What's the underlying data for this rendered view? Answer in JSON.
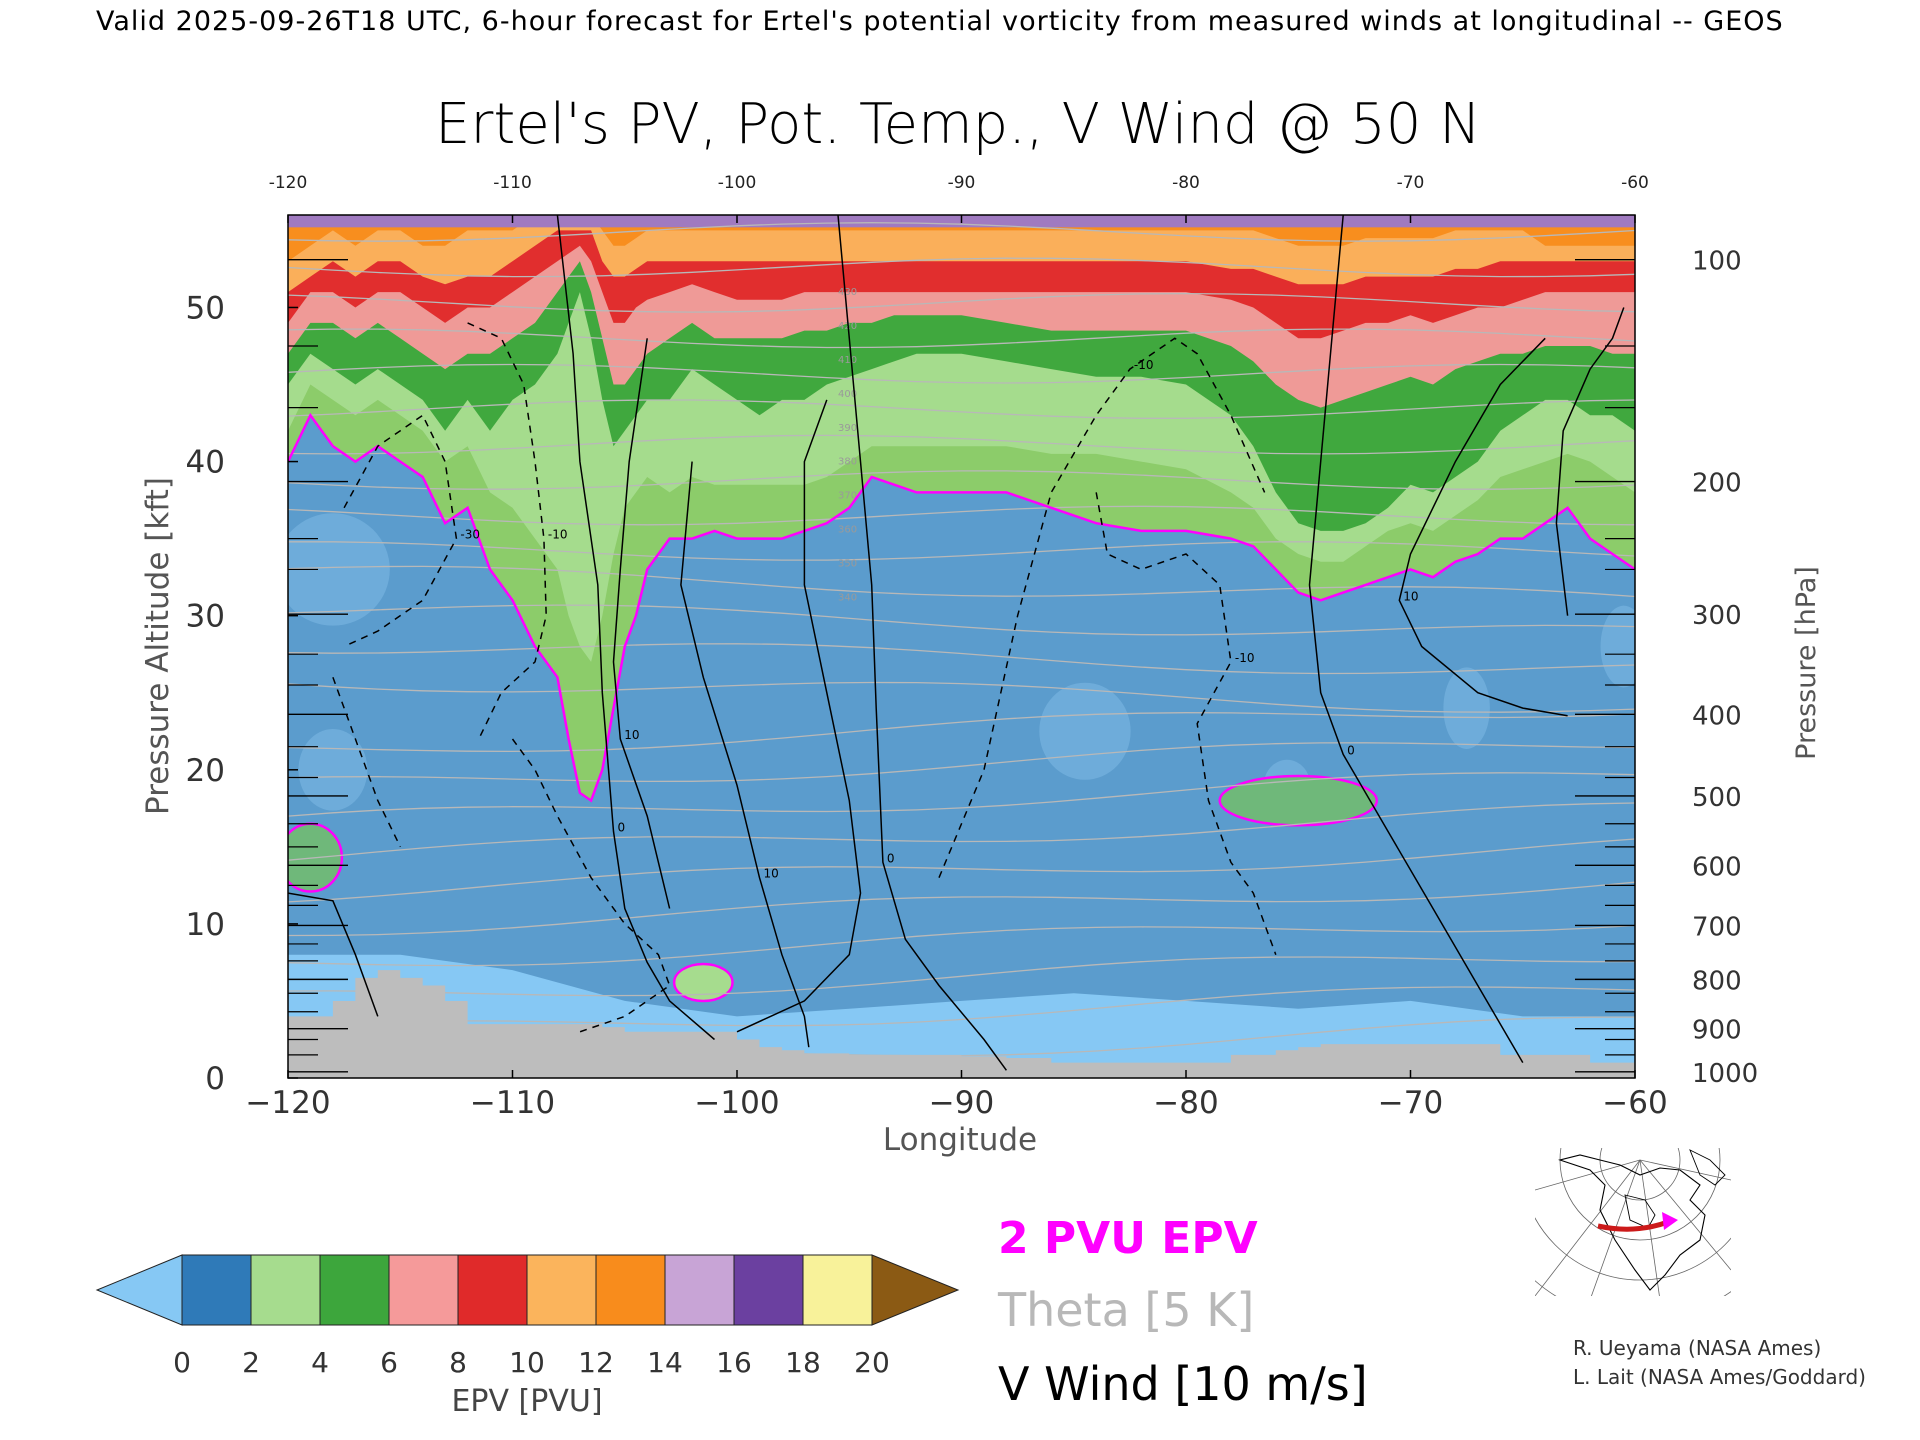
{
  "header": {
    "valid_line": "Valid 2025-09-26T18 UTC, 6-hour forecast for Ertel's potential vorticity from measured winds at longitudinal -- GEOS"
  },
  "chart_data": {
    "type": "heatmap",
    "title": "Ertel's PV, Pot. Temp., V Wind @ 50 N",
    "xlabel": "Longitude",
    "ylabel_left": "Pressure Altitude [kft]",
    "ylabel_right": "Pressure [hPa]",
    "xlim": [
      -120,
      -60
    ],
    "ylim": [
      0,
      56
    ],
    "x_ticks": [
      -120,
      -110,
      -100,
      -90,
      -80,
      -70,
      -60
    ],
    "x_tick_labels": [
      "−120",
      "−110",
      "−100",
      "−90",
      "−80",
      "−70",
      "−60"
    ],
    "top_tick_labels": [
      "-120",
      "-110",
      "-100",
      "-90",
      "-80",
      "-70",
      "-60"
    ],
    "y_ticks": [
      0,
      10,
      20,
      30,
      40,
      50
    ],
    "y_tick_labels": [
      "0",
      "10",
      "20",
      "30",
      "40",
      "50"
    ],
    "pressure_ticks": [
      {
        "hpa": 100,
        "kft": 53.1,
        "label": "100"
      },
      {
        "hpa": 200,
        "kft": 38.7,
        "label": "200"
      },
      {
        "hpa": 300,
        "kft": 30.1,
        "label": "300"
      },
      {
        "hpa": 400,
        "kft": 23.6,
        "label": "400"
      },
      {
        "hpa": 500,
        "kft": 18.3,
        "label": "500"
      },
      {
        "hpa": 600,
        "kft": 13.8,
        "label": "600"
      },
      {
        "hpa": 700,
        "kft": 9.9,
        "label": "700"
      },
      {
        "hpa": 800,
        "kft": 6.4,
        "label": "800"
      },
      {
        "hpa": 900,
        "kft": 3.2,
        "label": "900"
      },
      {
        "hpa": 1000,
        "kft": 0.4,
        "label": "1000"
      }
    ],
    "minor_pressure_ticks_kft": [
      47.5,
      43.5,
      35.0,
      33.0,
      27.5,
      25.5,
      21.5,
      19.5,
      16.5,
      15.0,
      12.5,
      11.2,
      8.7,
      7.6,
      5.5,
      4.3,
      2.5,
      1.5
    ],
    "colorbar": {
      "label": "EPV [PVU]",
      "ticks": [
        "0",
        "2",
        "4",
        "6",
        "8",
        "10",
        "12",
        "14",
        "16",
        "18",
        "20"
      ],
      "colors": [
        "#2f7ab8",
        "#a6dc8e",
        "#3da63c",
        "#f59a9a",
        "#e02a2a",
        "#fbb45c",
        "#f88c1c",
        "#c8a4d6",
        "#6b40a0",
        "#f8f29a"
      ],
      "under_color": "#86c8f4",
      "over_color": "#8b5a14"
    },
    "legend": [
      {
        "label": "2 PVU EPV",
        "color": "#ff00ff"
      },
      {
        "label": "Theta [5 K]",
        "color": "#b8b8b8"
      },
      {
        "label": "V Wind [10 m/s]",
        "color": "#000000"
      }
    ],
    "tropopause_2pvu": {
      "x": [
        -120,
        -119,
        -118,
        -117,
        -116,
        -115,
        -114,
        -113,
        -112,
        -111,
        -110,
        -109,
        -108,
        -107.5,
        -107,
        -106.5,
        -106,
        -105.5,
        -105,
        -104.5,
        -104,
        -103,
        -102,
        -101,
        -100,
        -99,
        -98,
        -97,
        -96,
        -95,
        -94,
        -93,
        -92,
        -90,
        -88,
        -86,
        -84,
        -82,
        -80,
        -78,
        -77,
        -76,
        -75,
        -74,
        -73,
        -72,
        -71,
        -70,
        -69,
        -68,
        -67,
        -66,
        -65,
        -64,
        -63,
        -62,
        -61,
        -60
      ],
      "y": [
        40,
        43,
        41,
        40,
        41,
        40,
        39,
        36,
        37,
        33,
        31,
        28,
        26,
        22,
        18.5,
        18,
        20,
        24,
        28,
        30,
        33,
        35,
        35,
        35.5,
        35,
        35,
        35,
        35.5,
        36,
        37,
        39,
        38.5,
        38,
        38,
        38,
        37,
        36,
        35.5,
        35.5,
        35,
        34.5,
        33,
        31.5,
        31,
        31.5,
        32,
        32.5,
        33,
        32.5,
        33.5,
        34,
        35,
        35,
        36,
        37,
        35,
        34,
        33
      ]
    },
    "epv_bands": {
      "x": [
        -120,
        -119,
        -118,
        -117,
        -116,
        -115,
        -114,
        -113,
        -112,
        -111,
        -110,
        -109,
        -108,
        -107.5,
        -107,
        -106.5,
        -106,
        -105.5,
        -105,
        -104.5,
        -104,
        -103,
        -102,
        -101,
        -100,
        -99,
        -98,
        -97,
        -96,
        -95,
        -94,
        -93,
        -92,
        -90,
        -88,
        -86,
        -84,
        -82,
        -80,
        -78,
        -77,
        -76,
        -75,
        -74,
        -73,
        -72,
        -71,
        -70,
        -69,
        -68,
        -67,
        -66,
        -65,
        -64,
        -63,
        -62,
        -61,
        -60
      ],
      "layers": [
        {
          "pv": 4,
          "color": "#a6dc8e",
          "top": [
            42,
            45,
            44,
            43,
            44,
            43,
            42,
            40,
            41,
            38,
            37,
            35,
            33,
            30,
            28,
            27,
            30,
            34,
            37,
            38,
            39,
            38,
            39,
            38.5,
            38.5,
            38.5,
            38.5,
            38.5,
            39,
            40,
            41,
            41,
            41,
            41,
            41,
            40.5,
            40.5,
            40,
            39.5,
            38,
            37,
            35,
            34,
            33.5,
            33.5,
            34.5,
            35.5,
            36,
            35.5,
            36.5,
            37.5,
            39,
            39.5,
            40,
            40.5,
            40,
            39,
            38
          ]
        },
        {
          "pv": 6,
          "color": "#3da63c",
          "top": [
            45,
            47,
            46,
            45,
            46,
            45,
            44,
            42,
            44,
            42,
            44,
            45,
            47,
            49,
            51,
            48,
            44,
            41,
            42,
            43,
            44,
            44,
            46,
            45,
            44,
            43,
            44,
            44,
            45,
            45.5,
            46,
            46.5,
            47,
            47,
            46.5,
            46,
            45.5,
            45.5,
            45,
            43,
            41,
            38,
            36,
            35.5,
            35.5,
            36,
            37,
            38.5,
            38,
            39,
            40,
            42,
            43,
            44,
            44,
            43,
            43,
            42
          ]
        },
        {
          "pv": 8,
          "color": "#f59a9a",
          "top": [
            47,
            49,
            49,
            48,
            49,
            48,
            47,
            46,
            47,
            47,
            48,
            49,
            51,
            52,
            53,
            51,
            48,
            45,
            45,
            46,
            47,
            48,
            49,
            48,
            48,
            48,
            48,
            48.5,
            48.5,
            49,
            49,
            49.5,
            49.5,
            49.5,
            49,
            48.5,
            48.5,
            48.5,
            48.5,
            47.5,
            46.5,
            45,
            44,
            43.5,
            44,
            44.5,
            45,
            45.5,
            45,
            46,
            46.5,
            47,
            47,
            47.5,
            47.5,
            47.5,
            47,
            47
          ]
        },
        {
          "pv": 10,
          "color": "#e02a2a",
          "top": [
            49,
            51,
            51,
            50,
            51,
            51,
            50,
            49,
            50,
            50,
            51,
            52,
            53,
            53.5,
            54,
            53,
            51,
            49,
            49,
            50,
            50.5,
            51,
            51.5,
            51,
            50.5,
            50.5,
            50.5,
            51,
            51,
            51,
            51,
            51,
            51,
            51,
            51,
            51,
            51,
            51,
            51,
            50.5,
            50,
            49,
            48,
            48,
            48.5,
            49,
            49,
            49.5,
            49,
            49.5,
            50,
            50,
            50.5,
            51,
            51,
            51,
            51,
            51
          ]
        },
        {
          "pv": 12,
          "color": "#fbb45c",
          "top": [
            51,
            52,
            53,
            52,
            53,
            53,
            52,
            51.5,
            52,
            52,
            53,
            54,
            55,
            55,
            55,
            55,
            53,
            52,
            52,
            52.5,
            53,
            53,
            53,
            53,
            53,
            53,
            53,
            53,
            53,
            53,
            53,
            53,
            53,
            53,
            53,
            53,
            53,
            53,
            53,
            52.5,
            52.5,
            52,
            51.5,
            51.5,
            51.5,
            52,
            52,
            52,
            52,
            52.5,
            52.5,
            53,
            53,
            53,
            53,
            53,
            53,
            53
          ]
        },
        {
          "pv": 14,
          "color": "#f88c1c",
          "top": [
            53,
            54,
            55,
            54,
            55,
            55,
            54,
            54,
            55,
            55,
            55,
            56,
            56,
            56,
            56,
            56,
            55,
            54,
            54,
            54.5,
            55,
            55,
            55,
            55,
            55,
            55,
            55,
            55,
            55,
            55,
            55,
            55,
            55,
            55,
            55,
            55,
            55,
            55,
            55,
            55,
            55,
            54.5,
            54,
            54,
            54,
            54.5,
            54.5,
            54.5,
            54.5,
            55,
            55,
            55,
            55,
            54,
            54,
            54,
            54,
            54
          ]
        },
        {
          "pv": 16,
          "color": "#c8a4d6",
          "top": [
            56,
            56,
            56,
            56,
            56,
            56,
            56,
            56,
            56,
            56,
            56,
            56,
            56,
            56,
            56,
            56,
            56,
            56,
            56,
            56,
            56,
            56,
            56,
            56,
            56,
            56,
            56,
            56,
            56,
            56,
            56,
            56,
            56,
            56,
            56,
            56,
            56,
            56,
            56,
            56,
            56,
            56,
            56,
            56,
            56,
            56,
            56,
            56,
            56,
            56,
            56,
            56,
            56,
            56,
            56,
            56,
            56,
            56
          ]
        }
      ]
    },
    "terrain": {
      "x": [
        -120,
        -119,
        -118,
        -117,
        -116,
        -115,
        -114,
        -113,
        -112,
        -111,
        -110,
        -109,
        -108,
        -107,
        -106,
        -105,
        -104,
        -103,
        -102,
        -101,
        -100,
        -99,
        -98,
        -97,
        -96,
        -95,
        -94,
        -92,
        -90,
        -88,
        -86,
        -84,
        -82,
        -80,
        -78,
        -76,
        -75,
        -74,
        -72,
        -70,
        -68,
        -66,
        -65,
        -64,
        -62,
        -60
      ],
      "y": [
        4,
        4,
        5,
        6.5,
        7,
        6.5,
        6,
        5,
        3.5,
        3.5,
        3.5,
        3.5,
        3.5,
        3.5,
        3.3,
        3,
        3,
        3,
        3,
        3,
        2.5,
        2,
        1.8,
        1.6,
        1.6,
        1.5,
        1.5,
        1.5,
        1.4,
        1.3,
        1,
        1,
        1,
        1,
        1.5,
        1.8,
        2,
        2.2,
        2.2,
        2.2,
        2.2,
        1.5,
        1.5,
        1.5,
        1,
        1
      ]
    },
    "v_wind_solid": [
      {
        "label": "0",
        "x": [
          -108,
          -107.3,
          -107,
          -106.2,
          -106,
          -105.5,
          -105,
          -104,
          -103,
          -101
        ],
        "y": [
          56,
          47,
          40,
          32,
          25,
          16,
          11,
          7.5,
          5,
          2.5
        ]
      },
      {
        "label": "0",
        "x": [
          -95.5,
          -95,
          -94.5,
          -94,
          -93.8,
          -93.5,
          -92.5,
          -91,
          -89,
          -88
        ],
        "y": [
          56,
          48,
          40,
          32,
          24,
          14,
          9,
          6,
          2.5,
          0.5
        ]
      },
      {
        "label": "0",
        "x": [
          -73,
          -73.5,
          -74,
          -74.5,
          -74,
          -73,
          -71,
          -69,
          -67,
          -65
        ],
        "y": [
          56,
          48,
          40,
          32,
          25,
          21,
          16,
          11,
          6,
          1
        ]
      },
      {
        "label": "10",
        "x": [
          -104,
          -104.8,
          -105.2,
          -105.5,
          -105.2,
          -104,
          -103.5,
          -103
        ],
        "y": [
          48,
          40,
          33,
          27,
          22,
          17,
          14,
          11
        ]
      },
      {
        "label": "10",
        "x": [
          -102,
          -102.5,
          -101.5,
          -100,
          -99,
          -98,
          -97,
          -96.8
        ],
        "y": [
          40,
          32,
          26,
          19,
          13,
          8,
          4,
          2
        ]
      },
      {
        "label": "",
        "x": [
          -96,
          -97,
          -97,
          -96,
          -95,
          -94.5,
          -95,
          -97,
          -100
        ],
        "y": [
          44,
          40,
          32,
          25,
          18,
          12,
          8,
          5,
          3
        ]
      },
      {
        "label": "10",
        "x": [
          -64,
          -66,
          -68,
          -70,
          -70.5,
          -69.5,
          -67,
          -65,
          -63
        ],
        "y": [
          48,
          45,
          40,
          34,
          31,
          28,
          25,
          24,
          23.5
        ]
      },
      {
        "label": "",
        "x": [
          -63,
          -63.5,
          -63.2,
          -62,
          -61,
          -60.5
        ],
        "y": [
          30,
          36,
          42,
          46,
          48,
          50
        ]
      },
      {
        "label": "",
        "x": [
          -120,
          -118,
          -117,
          -116
        ],
        "y": [
          12,
          11.5,
          8,
          4
        ]
      }
    ],
    "v_wind_dashed": [
      {
        "label": "-10",
        "x": [
          -112,
          -110.5,
          -109.5,
          -109,
          -108.6,
          -108.5,
          -109,
          -110.5,
          -111.5
        ],
        "y": [
          49,
          48,
          45,
          40,
          35,
          30,
          27,
          25,
          22
        ]
      },
      {
        "label": "-30",
        "x": [
          -117.5,
          -116,
          -114,
          -113,
          -112.5,
          -114,
          -116,
          -117.5
        ],
        "y": [
          37,
          41,
          43,
          40,
          35,
          31,
          29,
          28
        ]
      },
      {
        "label": "-10",
        "x": [
          -91,
          -89,
          -87.5,
          -86,
          -84,
          -82.5,
          -80.5,
          -79.5,
          -78,
          -76.5
        ],
        "y": [
          13,
          20,
          30,
          38,
          43,
          46,
          48,
          47,
          43,
          38
        ]
      },
      {
        "label": "-10",
        "x": [
          -84,
          -83.5,
          -82,
          -80,
          -78.5,
          -78,
          -79.5,
          -79,
          -78,
          -77,
          -76
        ],
        "y": [
          38,
          34,
          33,
          34,
          32,
          27,
          23,
          18,
          14,
          12,
          8
        ]
      },
      {
        "label": "",
        "x": [
          -110,
          -109,
          -108,
          -106.5,
          -105,
          -103.5,
          -103,
          -105,
          -107
        ],
        "y": [
          22,
          20,
          17,
          13,
          10,
          8,
          6,
          4,
          3
        ]
      },
      {
        "label": "",
        "x": [
          -118,
          -117,
          -116,
          -115
        ],
        "y": [
          26,
          22,
          18,
          15
        ]
      }
    ],
    "theta_labels": [
      "300",
      "310",
      "320",
      "330",
      "340",
      "350",
      "360",
      "370",
      "380",
      "390",
      "400",
      "410",
      "420",
      "430"
    ],
    "inset": {
      "credits": [
        "R. Ueyama (NASA Ames)",
        "L. Lait (NASA Ames/Goddard)"
      ],
      "route_color": "#cc1a1a",
      "marker_color": "#ff00ff"
    }
  }
}
